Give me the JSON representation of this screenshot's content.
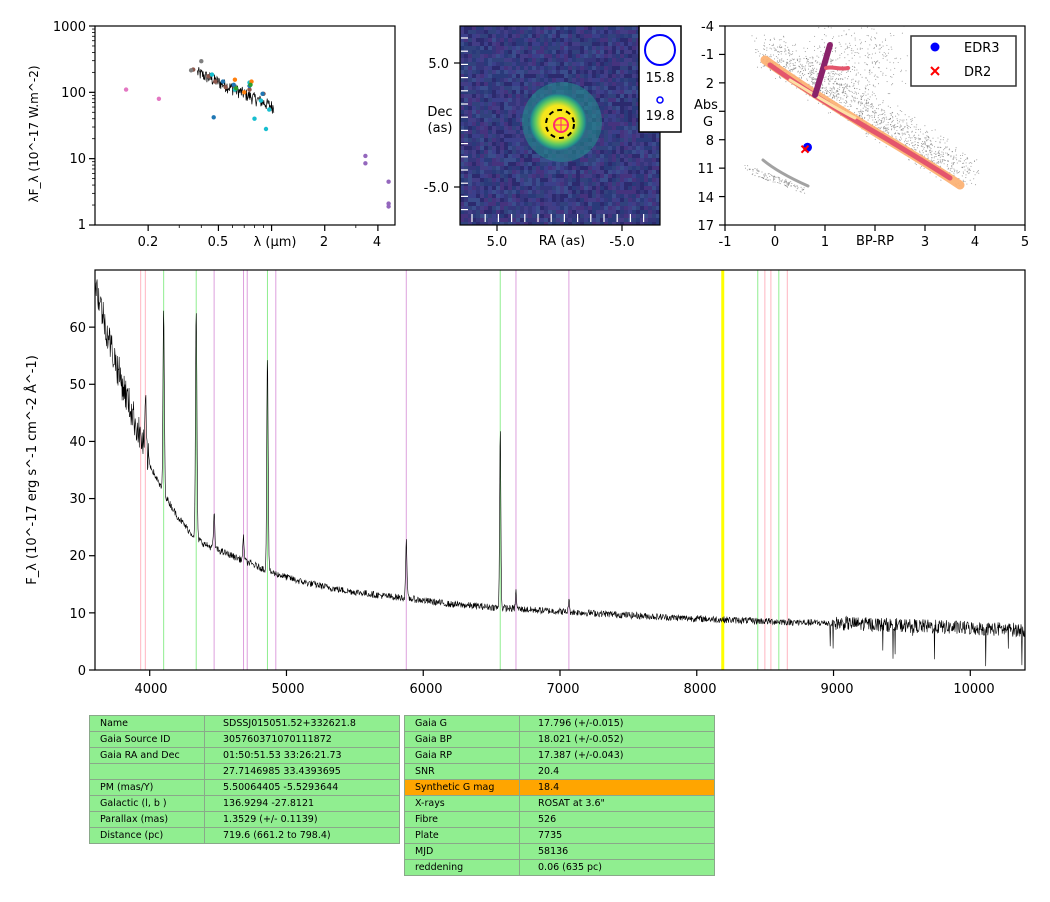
{
  "colors": {
    "balmer": "#90ee90",
    "helium": "#dda0dd",
    "calcium": "#ffb6c1",
    "marker": "#ffff00",
    "table_bg": "#90ee90",
    "table_highlight": "#ffa500",
    "edr3": "#0000ff",
    "dr2": "#ff0000"
  },
  "sed": {
    "ylabel": "λF_λ (10^-17 W.m^-2)",
    "xlabel": "λ (μm)",
    "xticks": [
      "0.2",
      "0.5",
      "1",
      "2",
      "4"
    ],
    "yticks": [
      "1",
      "10",
      "100",
      "1000"
    ],
    "chart_data": {
      "type": "scatter",
      "xscale": "log",
      "yscale": "log",
      "xlim": [
        0.1,
        5.0
      ],
      "ylim": [
        1,
        1000
      ],
      "series": [
        {
          "color": "#e377c2",
          "points": [
            [
              0.15,
              110
            ],
            [
              0.23,
              80
            ]
          ]
        },
        {
          "color": "#8c564b",
          "points": [
            [
              0.36,
              220
            ],
            [
              0.44,
              175
            ],
            [
              0.48,
              145
            ],
            [
              0.55,
              120
            ],
            [
              0.62,
              115
            ],
            [
              0.75,
              110
            ],
            [
              0.9,
              95
            ]
          ]
        },
        {
          "color": "#7f7f7f",
          "points": [
            [
              0.35,
              215
            ],
            [
              0.4,
              295
            ]
          ]
        },
        {
          "color": "#1f77b4",
          "points": [
            [
              0.47,
              42
            ],
            [
              0.53,
              145
            ],
            [
              0.61,
              130
            ],
            [
              0.75,
              125
            ],
            [
              0.89,
              95
            ]
          ]
        },
        {
          "color": "#17becf",
          "points": [
            [
              0.46,
              185
            ],
            [
              0.62,
              110
            ],
            [
              0.75,
              140
            ],
            [
              0.8,
              40
            ],
            [
              0.87,
              75
            ],
            [
              0.93,
              28
            ],
            [
              0.97,
              55
            ]
          ]
        },
        {
          "color": "#ff7f0e",
          "points": [
            [
              0.62,
              155
            ],
            [
              0.7,
              100
            ],
            [
              0.77,
              145
            ]
          ]
        },
        {
          "color": "#2ca02c",
          "points": [
            [
              0.63,
              115
            ],
            [
              0.76,
              130
            ]
          ]
        },
        {
          "color": "#9467bd",
          "points": [
            [
              3.4,
              11
            ],
            [
              3.4,
              8.5
            ],
            [
              4.6,
              4.5
            ],
            [
              4.6,
              2.1
            ],
            [
              4.6,
              1.9
            ]
          ]
        }
      ],
      "spectrum": {
        "x_range": [
          0.38,
          1.03
        ],
        "y_start": 200,
        "y_end": 60
      }
    }
  },
  "image_panel": {
    "xlabel": "RA (as)",
    "ylabel_line1": "Dec",
    "ylabel_line2": "(as)",
    "xticks": [
      "5.0",
      "-5.0"
    ],
    "yticks": [
      "5.0",
      "-5.0"
    ],
    "legend": [
      "15.8",
      "19.8"
    ]
  },
  "hr": {
    "xlabel": "BP-RP",
    "ylabel_line1": "Abs",
    "ylabel_line2": "G",
    "xticks": [
      "-1",
      "0",
      "1",
      "3",
      "4",
      "5"
    ],
    "yticks": [
      "-4",
      "-1",
      "2",
      "5",
      "8",
      "11",
      "14",
      "17"
    ],
    "legend": [
      "EDR3",
      "DR2"
    ],
    "chart_data": {
      "type": "scatter",
      "xlim": [
        -1,
        5
      ],
      "ylim": [
        17,
        -4
      ],
      "series": [
        {
          "name": "EDR3",
          "points": [
            [
              0.65,
              8.8
            ]
          ]
        },
        {
          "name": "DR2",
          "points": [
            [
              0.6,
              9.0
            ]
          ]
        }
      ]
    }
  },
  "spectrum": {
    "ylabel": "F_λ (10^-17 erg s^-1 cm^-2 Å^-1)",
    "xticks": [
      "4000",
      "5000",
      "6000",
      "7000",
      "8000",
      "9000",
      "10000"
    ],
    "yticks": [
      "0",
      "10",
      "20",
      "30",
      "40",
      "50",
      "60"
    ],
    "chart_data": {
      "type": "line",
      "xlim": [
        3600,
        10400
      ],
      "ylim": [
        0,
        70
      ],
      "continuum": [
        [
          3600,
          68
        ],
        [
          3700,
          58
        ],
        [
          3800,
          50
        ],
        [
          3900,
          43
        ],
        [
          4000,
          36
        ],
        [
          4100,
          31
        ],
        [
          4200,
          27
        ],
        [
          4300,
          24
        ],
        [
          4400,
          22
        ],
        [
          4500,
          21
        ],
        [
          4700,
          19
        ],
        [
          4900,
          17
        ],
        [
          5100,
          15.5
        ],
        [
          5400,
          14
        ],
        [
          5700,
          13
        ],
        [
          5900,
          12.5
        ],
        [
          6200,
          11.5
        ],
        [
          6500,
          11
        ],
        [
          6800,
          10.5
        ],
        [
          7200,
          10
        ],
        [
          7800,
          9.2
        ],
        [
          8300,
          8.7
        ],
        [
          8800,
          8.3
        ],
        [
          9300,
          8
        ],
        [
          9800,
          7.5
        ],
        [
          10400,
          7
        ]
      ],
      "emission_lines": [
        [
          3970,
          8
        ],
        [
          4102,
          32
        ],
        [
          4340,
          40
        ],
        [
          4471,
          6
        ],
        [
          4686,
          4
        ],
        [
          4861,
          38
        ],
        [
          5876,
          10
        ],
        [
          6563,
          32
        ],
        [
          6678,
          3
        ],
        [
          7065,
          2
        ]
      ],
      "balmer_lines": [
        4102,
        4340,
        4861,
        6563,
        8446,
        8600
      ],
      "helium_lines": [
        4471,
        4686,
        4713,
        4922,
        5876,
        6678,
        7065
      ],
      "calcium_lines": [
        3934,
        3968,
        8498,
        8542,
        8662
      ],
      "marker_line": 8190
    }
  },
  "table1": {
    "rows": [
      {
        "key": "Name",
        "value": "SDSSJ015051.52+332621.8"
      },
      {
        "key": "Gaia Source ID",
        "value": "305760371070111872"
      },
      {
        "key": "Gaia RA and Dec",
        "value": "01:50:51.53    33:26:21.73"
      },
      {
        "key": "",
        "value": "27.7146985    33.4393695"
      },
      {
        "key": "PM (mas/Y)",
        "value": "5.50064405    -5.5293644"
      },
      {
        "key": "Galactic (l, b )",
        "value": "136.9294    -27.8121"
      },
      {
        "key": "Parallax (mas)",
        "value": "1.3529 (+/- 0.1139)"
      },
      {
        "key": "Distance (pc)",
        "value": "719.6 (661.2 to 798.4)"
      }
    ]
  },
  "table2": {
    "rows": [
      {
        "key": "Gaia G",
        "value": "17.796 (+/-0.015)"
      },
      {
        "key": "Gaia BP",
        "value": "18.021 (+/-0.052)"
      },
      {
        "key": "Gaia RP",
        "value": "17.387 (+/-0.043)"
      },
      {
        "key": "SNR",
        "value": "20.4"
      },
      {
        "key": "Synthetic G mag",
        "value": "18.4",
        "highlight": true
      },
      {
        "key": "X-rays",
        "value": "ROSAT at 3.6\""
      },
      {
        "key": "Fibre",
        "value": "526"
      },
      {
        "key": "Plate",
        "value": "7735"
      },
      {
        "key": "MJD",
        "value": "58136"
      },
      {
        "key": "reddening",
        "value": "0.06 (635 pc)"
      }
    ]
  }
}
